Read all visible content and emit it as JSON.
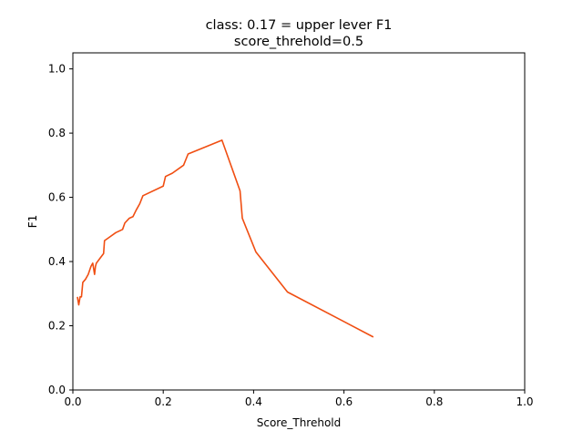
{
  "chart_data": {
    "type": "line",
    "title": "class: 0.17 = upper lever F1",
    "subtitle": "score_threhold=0.5",
    "xlabel": "Score_Threhold",
    "ylabel": "F1",
    "xlim": [
      0,
      1.0
    ],
    "ylim": [
      0,
      1.05
    ],
    "x_ticks": [
      0.0,
      0.2,
      0.4,
      0.6,
      0.8,
      1.0
    ],
    "x_tick_labels": [
      "0.0",
      "0.2",
      "0.4",
      "0.6",
      "0.8",
      "1.0"
    ],
    "y_ticks": [
      0.0,
      0.2,
      0.4,
      0.6,
      0.8,
      1.0
    ],
    "y_tick_labels": [
      "0.0",
      "0.2",
      "0.4",
      "0.6",
      "0.8",
      "1.0"
    ],
    "grid": false,
    "series": [
      {
        "color": "#f04e12",
        "x": [
          0.01,
          0.013,
          0.016,
          0.019,
          0.022,
          0.028,
          0.034,
          0.04,
          0.044,
          0.048,
          0.05,
          0.052,
          0.06,
          0.068,
          0.07,
          0.08,
          0.095,
          0.11,
          0.115,
          0.125,
          0.133,
          0.14,
          0.148,
          0.155,
          0.2,
          0.205,
          0.22,
          0.245,
          0.255,
          0.33,
          0.37,
          0.375,
          0.405,
          0.475,
          0.665
        ],
        "y": [
          0.29,
          0.265,
          0.29,
          0.29,
          0.335,
          0.345,
          0.36,
          0.385,
          0.395,
          0.36,
          0.385,
          0.395,
          0.41,
          0.425,
          0.465,
          0.475,
          0.49,
          0.5,
          0.52,
          0.535,
          0.54,
          0.56,
          0.58,
          0.605,
          0.635,
          0.665,
          0.675,
          0.7,
          0.735,
          0.778,
          0.62,
          0.535,
          0.43,
          0.305,
          0.165
        ]
      }
    ]
  }
}
